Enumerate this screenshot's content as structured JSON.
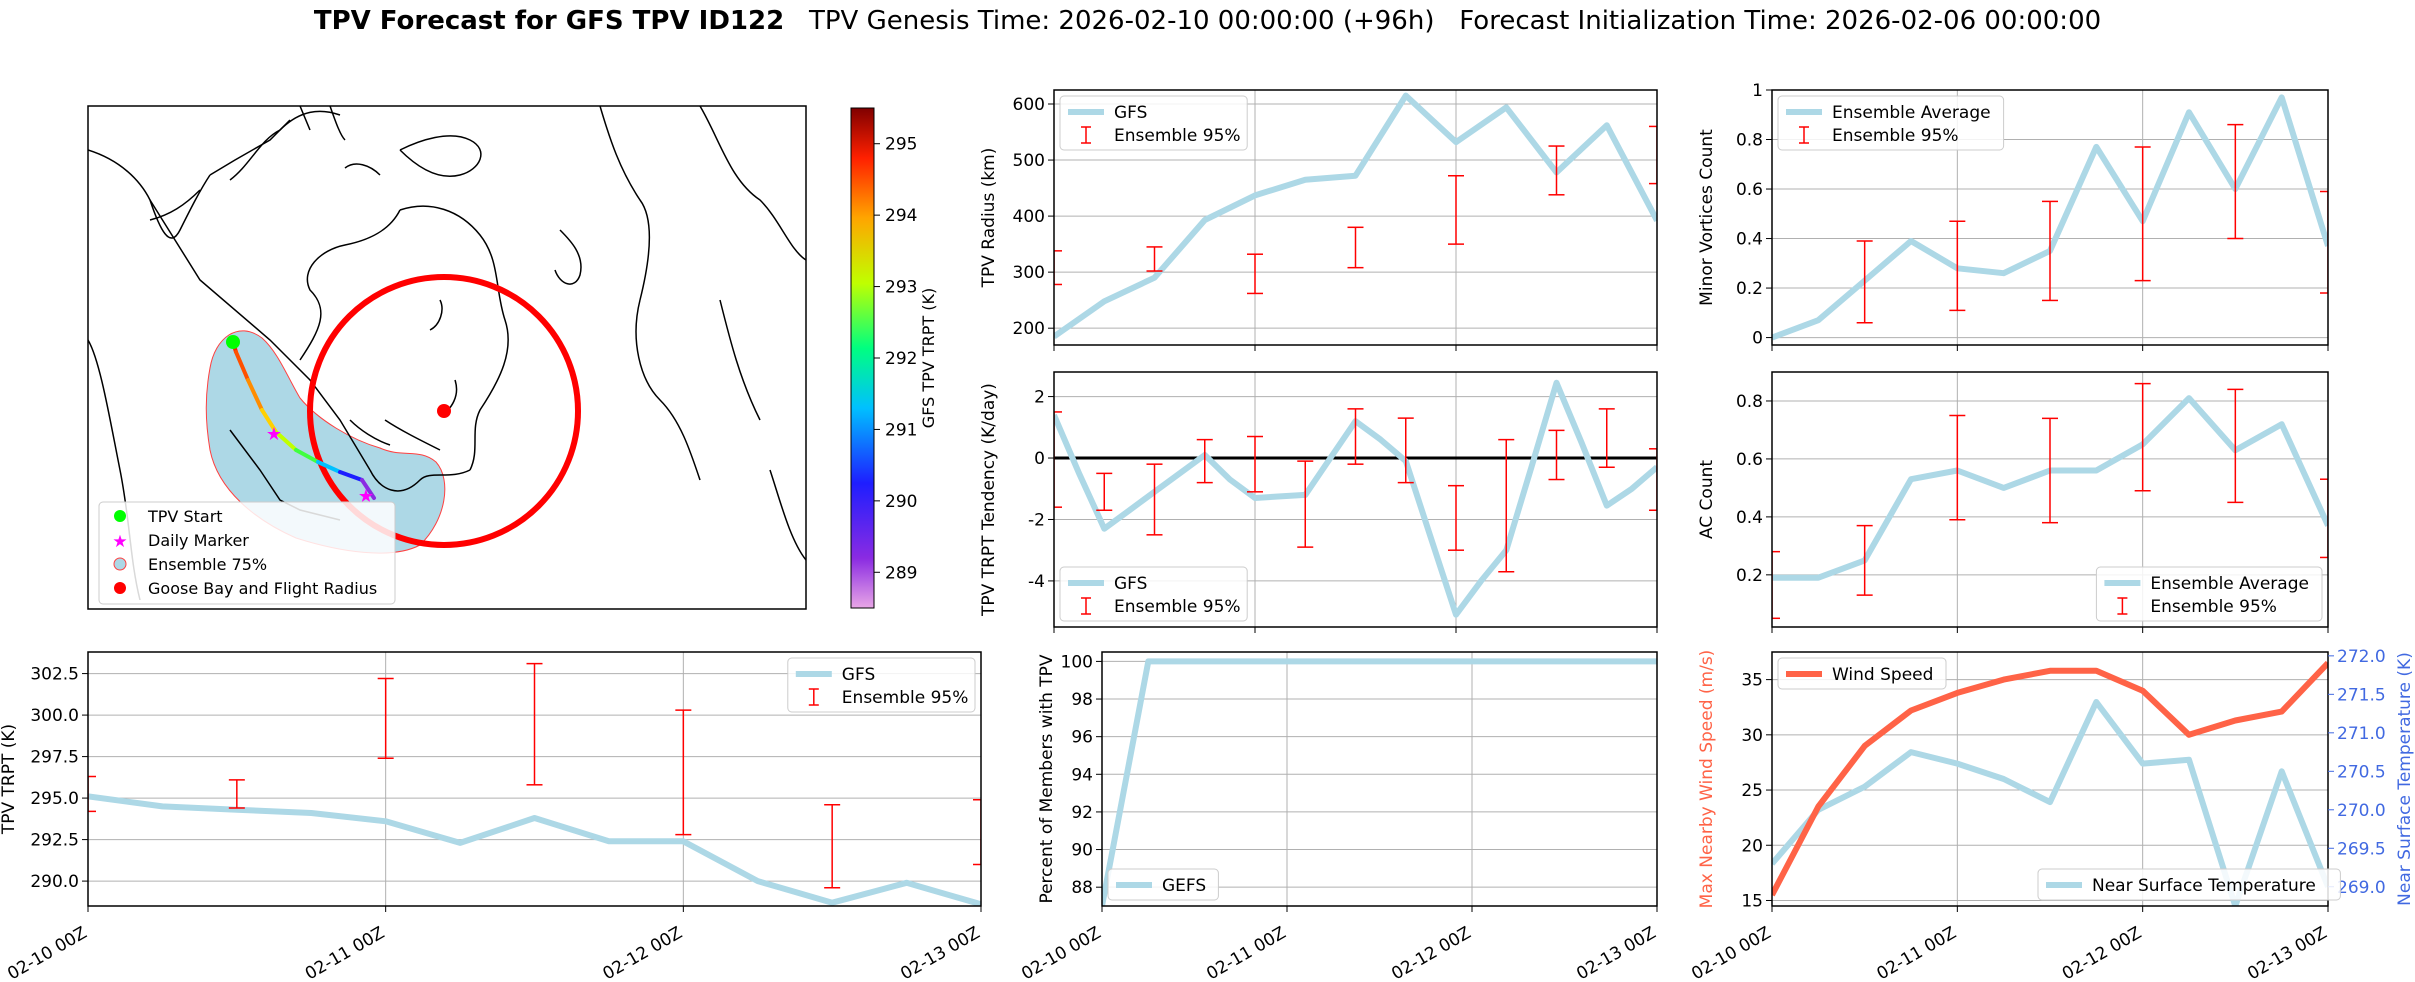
{
  "figure": {
    "title_bold": "TPV Forecast for GFS TPV ID122",
    "genesis": "TPV Genesis Time: 2026-02-10 00:00:00 (+96h)",
    "init": "Forecast Initialization Time: 2026-02-06 00:00:00",
    "x_tick_labels": [
      "02-10 00Z",
      "02-11 00Z",
      "02-12 00Z",
      "02-13 00Z"
    ],
    "colors": {
      "line": "#add8e6",
      "error": "#ff0000",
      "wind": "#ff6347",
      "temp_axis": "#4169e1",
      "zero": "#000000"
    }
  },
  "map": {
    "colorbar": {
      "label": "GFS TPV TRPT (K)",
      "ticks": [
        "289",
        "290",
        "291",
        "292",
        "293",
        "294",
        "295"
      ],
      "min": 288.5,
      "max": 295.5
    },
    "legend": [
      "TPV Start",
      "Daily Marker",
      "Ensemble 75%",
      "Goose Bay and Flight Radius"
    ],
    "icons": [
      "tpv-start-icon",
      "daily-marker-star-icon",
      "ensemble-75-patch-icon",
      "goose-bay-dot-icon"
    ]
  },
  "chart_data": [
    {
      "id": "radius",
      "type": "line",
      "title": "",
      "xlabel": "",
      "ylabel": "TPV Radius (km)",
      "ylim": [
        170,
        625
      ],
      "yticks": [
        200,
        300,
        400,
        500,
        600
      ],
      "legend": [
        "GFS",
        "Ensemble 95%"
      ],
      "legend_pos": "top-left",
      "line_color": "#add8e6",
      "x": [
        0,
        6,
        12,
        18,
        24,
        30,
        36,
        42,
        48,
        54,
        60,
        66,
        72
      ],
      "y": [
        185,
        248,
        290,
        393,
        437,
        465,
        472,
        615,
        532,
        594,
        478,
        562,
        392
      ],
      "errors": [
        [
          0,
          278,
          338
        ],
        [
          12,
          302,
          345
        ],
        [
          24,
          262,
          332
        ],
        [
          36,
          308,
          380
        ],
        [
          48,
          350,
          472
        ],
        [
          60,
          438,
          525
        ],
        [
          72,
          458,
          560
        ]
      ]
    },
    {
      "id": "minor",
      "type": "line",
      "title": "",
      "xlabel": "",
      "ylabel": "Minor Vortices Count",
      "ylim": [
        -0.03,
        1.0
      ],
      "yticks": [
        0.0,
        0.2,
        0.4,
        0.6,
        0.8,
        1.0
      ],
      "legend": [
        "Ensemble Average",
        "Ensemble 95%"
      ],
      "legend_pos": "top-left",
      "line_color": "#add8e6",
      "x": [
        0,
        6,
        12,
        18,
        24,
        30,
        36,
        42,
        48,
        54,
        60,
        66,
        72
      ],
      "y": [
        0.0,
        0.07,
        0.23,
        0.39,
        0.28,
        0.26,
        0.35,
        0.77,
        0.47,
        0.91,
        0.6,
        0.97,
        0.37
      ],
      "errors": [
        [
          12,
          0.06,
          0.39
        ],
        [
          24,
          0.11,
          0.47
        ],
        [
          36,
          0.15,
          0.55
        ],
        [
          48,
          0.23,
          0.77
        ],
        [
          60,
          0.4,
          0.86
        ],
        [
          72,
          0.18,
          0.59
        ]
      ]
    },
    {
      "id": "tendency",
      "type": "line",
      "title": "",
      "xlabel": "",
      "ylabel": "TPV TRPT Tendency (K/day)",
      "ylim": [
        -5.5,
        2.8
      ],
      "yticks": [
        -4,
        -2,
        0,
        2
      ],
      "zero_line": true,
      "legend": [
        "GFS",
        "Ensemble 95%"
      ],
      "legend_pos": "bottom-left",
      "line_color": "#add8e6",
      "x": [
        0,
        3,
        6,
        9,
        12,
        15,
        18,
        21,
        24,
        27,
        30,
        33,
        36,
        39,
        42,
        45,
        48,
        51,
        54,
        57,
        60,
        63,
        66,
        69,
        72
      ],
      "y": [
        1.4,
        -0.5,
        -2.3,
        -1.7,
        -1.1,
        -0.5,
        0.1,
        -0.7,
        -1.3,
        -1.25,
        -1.2,
        0.0,
        1.2,
        0.6,
        -0.1,
        -2.6,
        -5.1,
        -4.0,
        -3.0,
        -0.3,
        2.45,
        0.5,
        -1.55,
        -1.0,
        -0.3
      ],
      "errors": [
        [
          0,
          -1.6,
          1.5
        ],
        [
          6,
          -1.7,
          -0.5
        ],
        [
          12,
          -2.5,
          -0.2
        ],
        [
          18,
          -0.8,
          0.6
        ],
        [
          24,
          -1.1,
          0.7
        ],
        [
          30,
          -2.9,
          -0.1
        ],
        [
          36,
          -0.2,
          1.6
        ],
        [
          42,
          -0.8,
          1.3
        ],
        [
          48,
          -3.0,
          -0.9
        ],
        [
          54,
          -3.7,
          0.6
        ],
        [
          60,
          -0.7,
          0.9
        ],
        [
          66,
          -0.3,
          1.6
        ],
        [
          72,
          -1.7,
          0.3
        ]
      ]
    },
    {
      "id": "ac",
      "type": "line",
      "title": "",
      "xlabel": "",
      "ylabel": "AC Count",
      "ylim": [
        0.02,
        0.9
      ],
      "yticks": [
        0.2,
        0.4,
        0.6,
        0.8
      ],
      "legend": [
        "Ensemble Average",
        "Ensemble 95%"
      ],
      "legend_pos": "bottom-right",
      "line_color": "#add8e6",
      "x": [
        0,
        6,
        12,
        18,
        24,
        30,
        36,
        42,
        48,
        54,
        60,
        66,
        72
      ],
      "y": [
        0.19,
        0.19,
        0.25,
        0.53,
        0.56,
        0.5,
        0.56,
        0.56,
        0.65,
        0.81,
        0.63,
        0.72,
        0.37
      ],
      "errors": [
        [
          0,
          0.05,
          0.28
        ],
        [
          12,
          0.13,
          0.37
        ],
        [
          24,
          0.39,
          0.75
        ],
        [
          36,
          0.38,
          0.74
        ],
        [
          48,
          0.49,
          0.86
        ],
        [
          60,
          0.45,
          0.84
        ],
        [
          72,
          0.26,
          0.53
        ]
      ]
    },
    {
      "id": "trpt",
      "type": "line",
      "title": "",
      "xlabel": "",
      "ylabel": "TPV TRPT (K)",
      "ylim": [
        288.5,
        303.8
      ],
      "yticks": [
        "290.0",
        "292.5",
        "295.0",
        "297.5",
        "300.0",
        "302.5"
      ],
      "legend": [
        "GFS",
        "Ensemble 95%"
      ],
      "legend_pos": "top-right",
      "line_color": "#add8e6",
      "x": [
        0,
        6,
        12,
        18,
        24,
        30,
        36,
        42,
        48,
        54,
        60,
        66,
        72
      ],
      "y": [
        295.1,
        294.5,
        294.3,
        294.1,
        293.6,
        292.3,
        293.8,
        292.4,
        292.4,
        290.0,
        288.7,
        289.9,
        288.6
      ],
      "errors": [
        [
          0,
          294.2,
          296.3
        ],
        [
          12,
          294.4,
          296.1
        ],
        [
          24,
          297.4,
          302.2
        ],
        [
          36,
          295.8,
          303.1
        ],
        [
          48,
          292.8,
          300.3
        ],
        [
          60,
          289.6,
          294.6
        ],
        [
          72,
          291.0,
          294.9
        ]
      ]
    },
    {
      "id": "members",
      "type": "line",
      "title": "",
      "xlabel": "",
      "ylabel": "Percent of Members with TPV",
      "ylim": [
        87,
        100.5
      ],
      "yticks": [
        88,
        90,
        92,
        94,
        96,
        98,
        100
      ],
      "legend": [
        "GEFS"
      ],
      "legend_pos": "bottom-left",
      "line_color": "#add8e6",
      "x": [
        0,
        6,
        12,
        18,
        24,
        30,
        36,
        42,
        48,
        54,
        60,
        66,
        72
      ],
      "y": [
        87.0,
        100,
        100,
        100,
        100,
        100,
        100,
        100,
        100,
        100,
        100,
        100,
        100
      ]
    },
    {
      "id": "wind_temp",
      "type": "line",
      "title": "",
      "xlabel": "",
      "ylabel": "Max Nearby Wind Speed (m/s)",
      "ylabel_right": "Near Surface Temperature (K)",
      "ylim": [
        14.5,
        37.5
      ],
      "yticks": [
        15,
        20,
        25,
        30,
        35
      ],
      "ylim_right": [
        268.75,
        272.05
      ],
      "yticks_right": [
        "269.0",
        "269.5",
        "270.0",
        "270.5",
        "271.0",
        "271.5",
        "272.0"
      ],
      "legend": [
        "Wind Speed",
        "Near Surface Temperature"
      ],
      "legend_pos": "top-left / bottom-right",
      "x": [
        0,
        6,
        12,
        18,
        24,
        30,
        36,
        42,
        48,
        54,
        60,
        66,
        72
      ],
      "series": [
        {
          "name": "Wind Speed",
          "axis": "left",
          "color": "#ff6347",
          "values": [
            15.5,
            23.5,
            29.0,
            32.2,
            33.8,
            35.0,
            35.8,
            35.8,
            34.0,
            30.0,
            31.3,
            32.1,
            36.5
          ]
        },
        {
          "name": "Near Surface Temperature",
          "axis": "right",
          "color": "#add8e6",
          "values": [
            269.3,
            270.0,
            270.3,
            270.75,
            270.6,
            270.4,
            270.1,
            271.4,
            270.6,
            270.65,
            268.75,
            270.5,
            269.0
          ]
        }
      ]
    }
  ]
}
